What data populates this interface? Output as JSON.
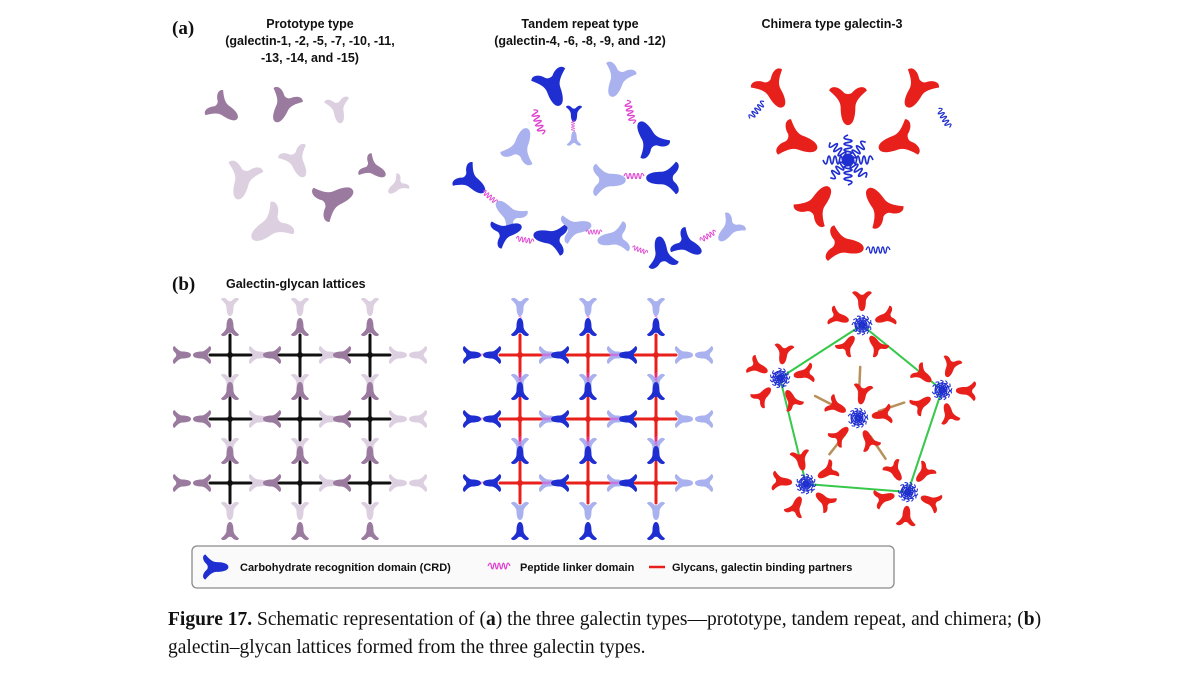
{
  "panel_a": {
    "label": "(a)",
    "columns": [
      {
        "title_lines": [
          "Prototype type",
          "(galectin-1, -2, -5, -7, -10, -11,",
          "-13, -14, and -15)"
        ]
      },
      {
        "title_lines": [
          "Tandem repeat type",
          "(galectin-4, -6, -8, -9, and -12)"
        ]
      },
      {
        "title_lines": [
          "Chimera type galectin-3"
        ]
      }
    ]
  },
  "panel_b": {
    "label": "(b)",
    "title": "Galectin-glycan lattices"
  },
  "legend": {
    "crd": "Carbohydrate recognition domain (CRD)",
    "linker": "Peptide linker domain",
    "glycan": "Glycans, galectin binding partners"
  },
  "caption": {
    "prefix": "Figure 17.",
    "t1": " Schematic representation of (",
    "a": "a",
    "t2": ") the three galectin types—prototype, tandem repeat, and chimera; (",
    "b": "b",
    "t3": ") galectin–glycan lattices formed from the three galectin types."
  },
  "colors": {
    "prototype": "#9b7a9f",
    "prototype_light": "#dccfe0",
    "crd_dark": "#1f2ed0",
    "crd_light": "#a9b2ee",
    "linker": "#e040d0",
    "chimera": "#e8201c",
    "glycan": "#e8201c",
    "lattice_link": "#111111",
    "green_link": "#36c84a",
    "brown_link": "#b8905a"
  }
}
